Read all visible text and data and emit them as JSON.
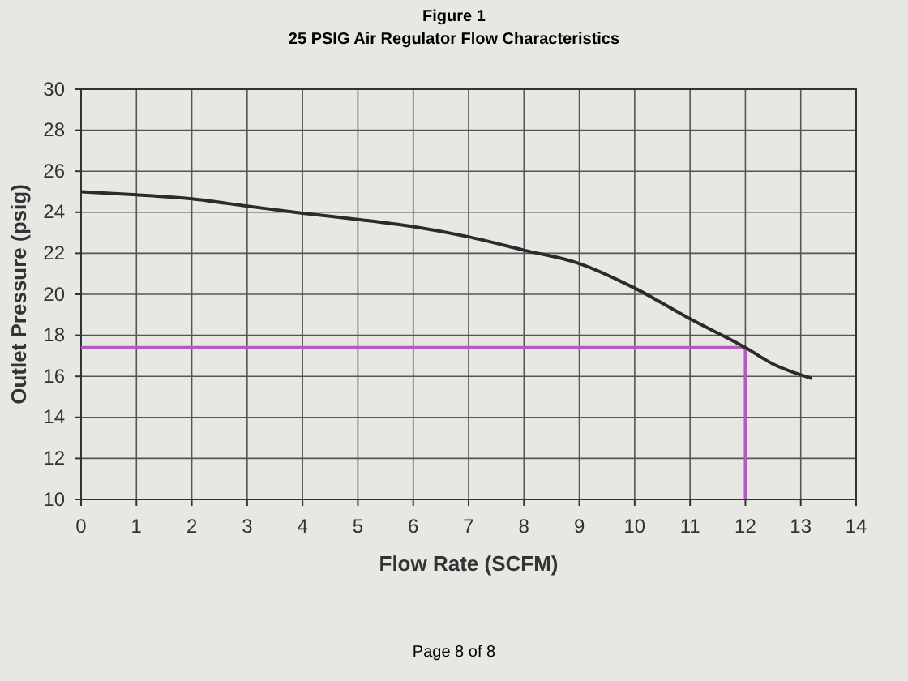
{
  "chart_data": {
    "type": "line",
    "title": "Figure 1",
    "subtitle": "25 PSIG Air Regulator Flow Characteristics",
    "xlabel": "Flow Rate (SCFM)",
    "ylabel": "Outlet Pressure (psig)",
    "x": [
      0,
      1,
      2,
      3,
      4,
      5,
      6,
      7,
      8,
      9,
      10,
      11,
      12,
      12.5,
      13.2
    ],
    "series": [
      {
        "color": "#2b2b2b",
        "values": [
          25,
          24.85,
          24.65,
          24.3,
          23.95,
          23.65,
          23.3,
          22.8,
          22.15,
          21.5,
          20.3,
          18.8,
          17.4,
          16.6,
          15.9
        ]
      }
    ],
    "xlim": [
      0,
      14
    ],
    "xticks": [
      0,
      1,
      2,
      3,
      4,
      5,
      6,
      7,
      8,
      9,
      10,
      11,
      12,
      13,
      14
    ],
    "ylim": [
      10,
      30
    ],
    "yticks": [
      10,
      12,
      14,
      16,
      18,
      20,
      22,
      24,
      26,
      28,
      30
    ],
    "grid": true,
    "marker": "none",
    "line_style": "solid",
    "ref_lines": [
      {
        "axis": "y",
        "value": 17.4,
        "color": "#b05cc0"
      },
      {
        "axis": "x",
        "value": 12,
        "color": "#b05cc0"
      }
    ],
    "annotations": [
      "Page 8 of 8"
    ]
  }
}
